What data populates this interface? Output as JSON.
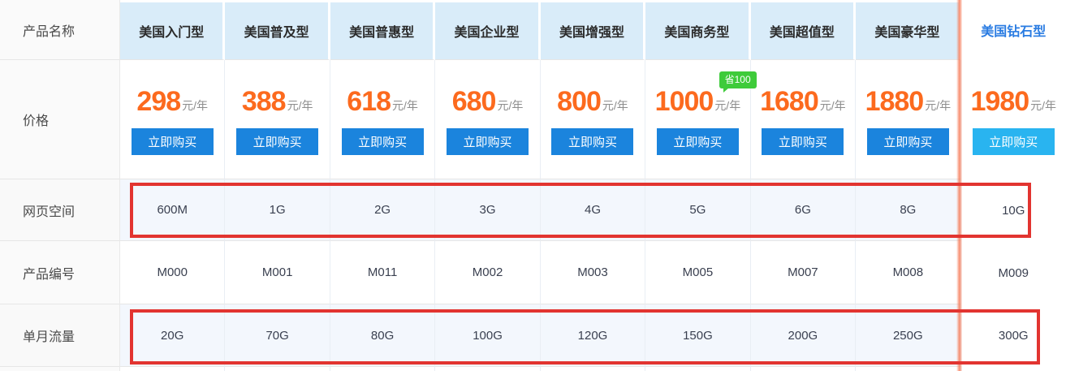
{
  "table": {
    "row_labels": [
      "产品名称",
      "价格",
      "网页空间",
      "产品编号",
      "单月流量"
    ],
    "buy_label": "立即购买",
    "price_unit": "元/年",
    "badge": "省100",
    "plans": [
      {
        "name": "美国入门型",
        "price": "298",
        "space": "600M",
        "code": "M000",
        "traffic": "20G"
      },
      {
        "name": "美国普及型",
        "price": "388",
        "space": "1G",
        "code": "M001",
        "traffic": "70G"
      },
      {
        "name": "美国普惠型",
        "price": "618",
        "space": "2G",
        "code": "M011",
        "traffic": "80G"
      },
      {
        "name": "美国企业型",
        "price": "680",
        "space": "3G",
        "code": "M002",
        "traffic": "100G"
      },
      {
        "name": "美国增强型",
        "price": "800",
        "space": "4G",
        "code": "M003",
        "traffic": "120G"
      },
      {
        "name": "美国商务型",
        "price": "1000",
        "space": "5G",
        "code": "M005",
        "traffic": "150G",
        "badge": "省100"
      },
      {
        "name": "美国超值型",
        "price": "1680",
        "space": "6G",
        "code": "M007",
        "traffic": "200G"
      },
      {
        "name": "美国豪华型",
        "price": "1880",
        "space": "8G",
        "code": "M008",
        "traffic": "250G"
      },
      {
        "name": "美国钻石型",
        "price": "1980",
        "space": "10G",
        "code": "M009",
        "traffic": "300G",
        "highlighted": true
      }
    ],
    "colors": {
      "price_orange": "#fc6a1e",
      "buy_button_blue": "#1b84dd",
      "highlight_buy_button_blue": "#29b4f0",
      "header_cell_bg": "#d9ecf9",
      "tint_row_bg": "#f3f7fd",
      "annotation_red": "#e23430",
      "badge_green": "#3ecb3a",
      "diamond_header_text": "#2a7ce2",
      "highlight_divider_salmon": "#f5785a"
    }
  }
}
